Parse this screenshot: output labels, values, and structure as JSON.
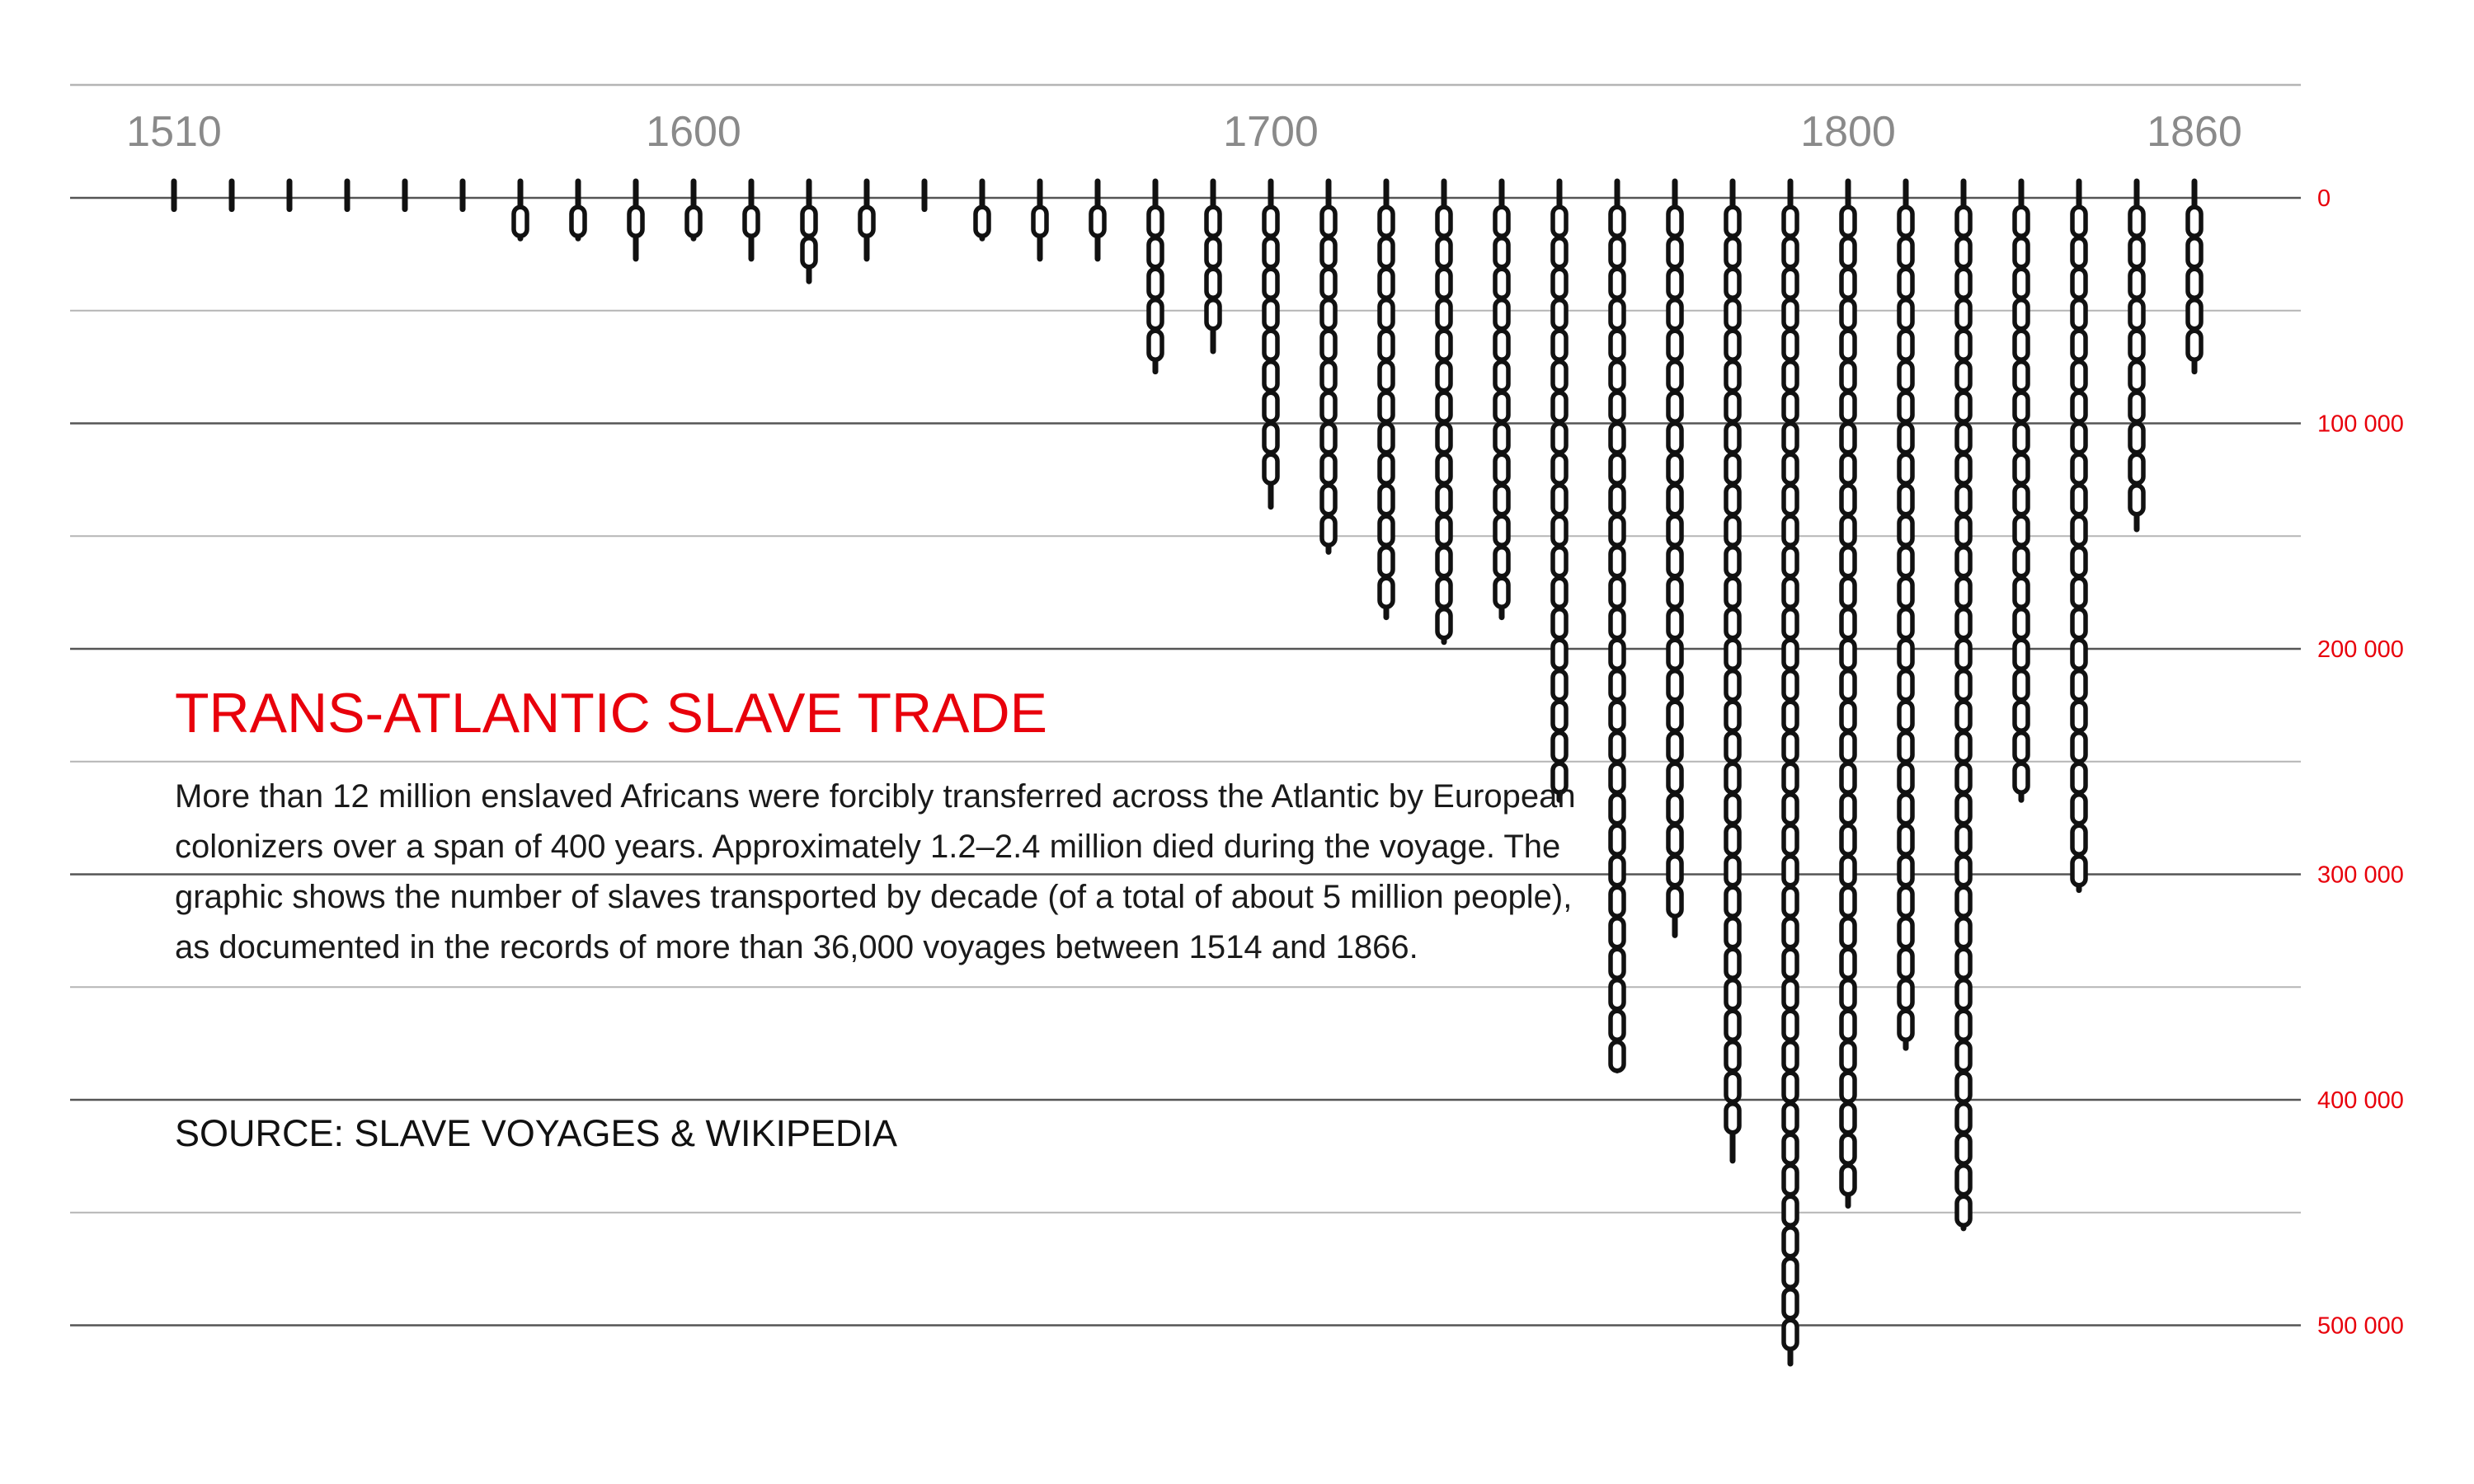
{
  "text": {
    "title": "TRANS-ATLANTIC SLAVE TRADE",
    "description": "More than 12 million enslaved Africans were forcibly transferred across the Atlantic by European colonizers over a span of 400 years. Approximately 1.2–2.4 million died during the voyage. The graphic shows the number of slaves transported by decade (of a total of about 5 million people), as documented in the records of more than 36,000 voyages between 1514 and 1866.",
    "source": "SOURCE: SLAVE VOYAGES & WIKIPEDIA"
  },
  "colors": {
    "accent": "#e8000b",
    "chain": "#111111",
    "grid_major": "#555555",
    "grid_minor": "#b5b5b5",
    "year_labels": "#8a8a8a"
  },
  "chart_data": {
    "type": "bar",
    "orientation": "vertical, hanging downward from the 0 line",
    "mark": "chain",
    "x_labels": [
      "1510",
      "1600",
      "1700",
      "1800",
      "1860"
    ],
    "x": [
      1510,
      1520,
      1530,
      1540,
      1550,
      1560,
      1570,
      1580,
      1590,
      1600,
      1610,
      1620,
      1630,
      1640,
      1650,
      1660,
      1670,
      1680,
      1690,
      1700,
      1710,
      1720,
      1730,
      1740,
      1750,
      1760,
      1770,
      1780,
      1790,
      1800,
      1810,
      1820,
      1830,
      1840,
      1850,
      1860
    ],
    "values": [
      5000,
      5000,
      5000,
      5000,
      5000,
      5000,
      18000,
      18000,
      27000,
      18000,
      27000,
      37000,
      27000,
      5000,
      18000,
      27000,
      27000,
      77000,
      68000,
      137000,
      157000,
      186000,
      197000,
      186000,
      267000,
      387000,
      327000,
      427000,
      517000,
      447000,
      377000,
      457000,
      267000,
      307000,
      147000,
      77000
    ],
    "y_ticks": [
      "0",
      "100 000",
      "200 000",
      "300 000",
      "400 000",
      "500 000"
    ],
    "y_tick_values": [
      0,
      100000,
      200000,
      300000,
      400000,
      500000
    ],
    "ylim": [
      0,
      500000
    ],
    "xlim": [
      1492,
      1880
    ],
    "y_axis_position": "right",
    "y_axis_inverted": true,
    "grid": true
  }
}
